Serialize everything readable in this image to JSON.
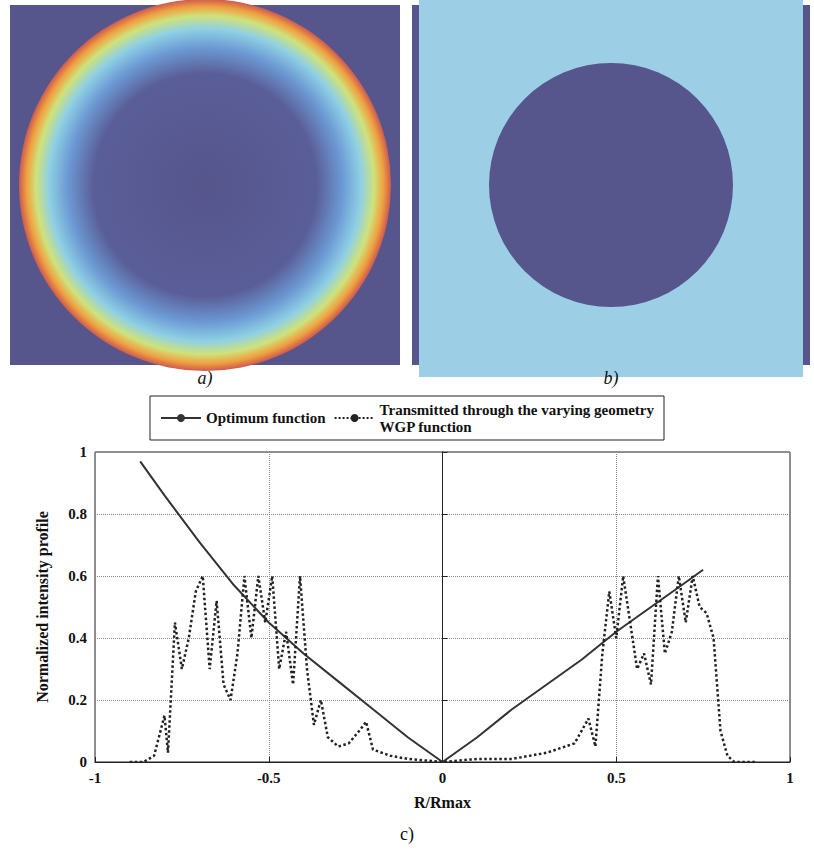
{
  "images": [
    {
      "label": "a)"
    },
    {
      "label": "b)"
    }
  ],
  "chart_data": {
    "type": "line",
    "panel_label": "c)",
    "xlabel": "R/Rmax",
    "ylabel": "Normalized intensity profile",
    "xlim": [
      -1,
      1
    ],
    "xticks": [
      -1,
      -0.5,
      0,
      0.5,
      1
    ],
    "ylim": [
      0,
      1
    ],
    "yticks": [
      0,
      0.2,
      0.4,
      0.6,
      0.8,
      1
    ],
    "grid": true,
    "legend": "top",
    "series": [
      {
        "name": "Optimum function",
        "color": "#333333",
        "line_style": "solid",
        "x": [
          -0.87,
          -0.8,
          -0.7,
          -0.6,
          -0.5,
          -0.4,
          -0.3,
          -0.2,
          -0.1,
          0,
          0.1,
          0.2,
          0.3,
          0.4,
          0.5,
          0.6,
          0.7,
          0.75
        ],
        "values": [
          0.97,
          0.86,
          0.71,
          0.57,
          0.45,
          0.35,
          0.26,
          0.17,
          0.08,
          0,
          0.08,
          0.17,
          0.25,
          0.33,
          0.42,
          0.5,
          0.58,
          0.62
        ]
      },
      {
        "name": "Transmitted through the varying geometry WGP function",
        "color": "#222222",
        "line_style": "dotted",
        "x": [
          -0.9,
          -0.86,
          -0.83,
          -0.8,
          -0.79,
          -0.77,
          -0.75,
          -0.73,
          -0.71,
          -0.69,
          -0.67,
          -0.65,
          -0.63,
          -0.61,
          -0.59,
          -0.57,
          -0.55,
          -0.53,
          -0.51,
          -0.49,
          -0.47,
          -0.45,
          -0.43,
          -0.41,
          -0.39,
          -0.37,
          -0.35,
          -0.33,
          -0.3,
          -0.27,
          -0.24,
          -0.22,
          -0.2,
          -0.15,
          -0.1,
          0,
          0.1,
          0.2,
          0.3,
          0.38,
          0.42,
          0.44,
          0.46,
          0.48,
          0.5,
          0.52,
          0.54,
          0.56,
          0.58,
          0.6,
          0.62,
          0.64,
          0.66,
          0.68,
          0.7,
          0.72,
          0.74,
          0.76,
          0.78,
          0.8,
          0.82,
          0.84,
          0.9
        ],
        "values": [
          0,
          0,
          0.02,
          0.15,
          0.03,
          0.45,
          0.3,
          0.4,
          0.55,
          0.6,
          0.3,
          0.52,
          0.25,
          0.2,
          0.35,
          0.6,
          0.4,
          0.6,
          0.45,
          0.6,
          0.3,
          0.42,
          0.25,
          0.6,
          0.3,
          0.12,
          0.2,
          0.08,
          0.05,
          0.06,
          0.1,
          0.13,
          0.04,
          0.02,
          0.01,
          0,
          0.01,
          0.01,
          0.03,
          0.06,
          0.14,
          0.05,
          0.35,
          0.55,
          0.4,
          0.6,
          0.45,
          0.3,
          0.35,
          0.25,
          0.6,
          0.35,
          0.42,
          0.6,
          0.45,
          0.6,
          0.5,
          0.48,
          0.4,
          0.1,
          0.02,
          0,
          0
        ]
      }
    ]
  }
}
